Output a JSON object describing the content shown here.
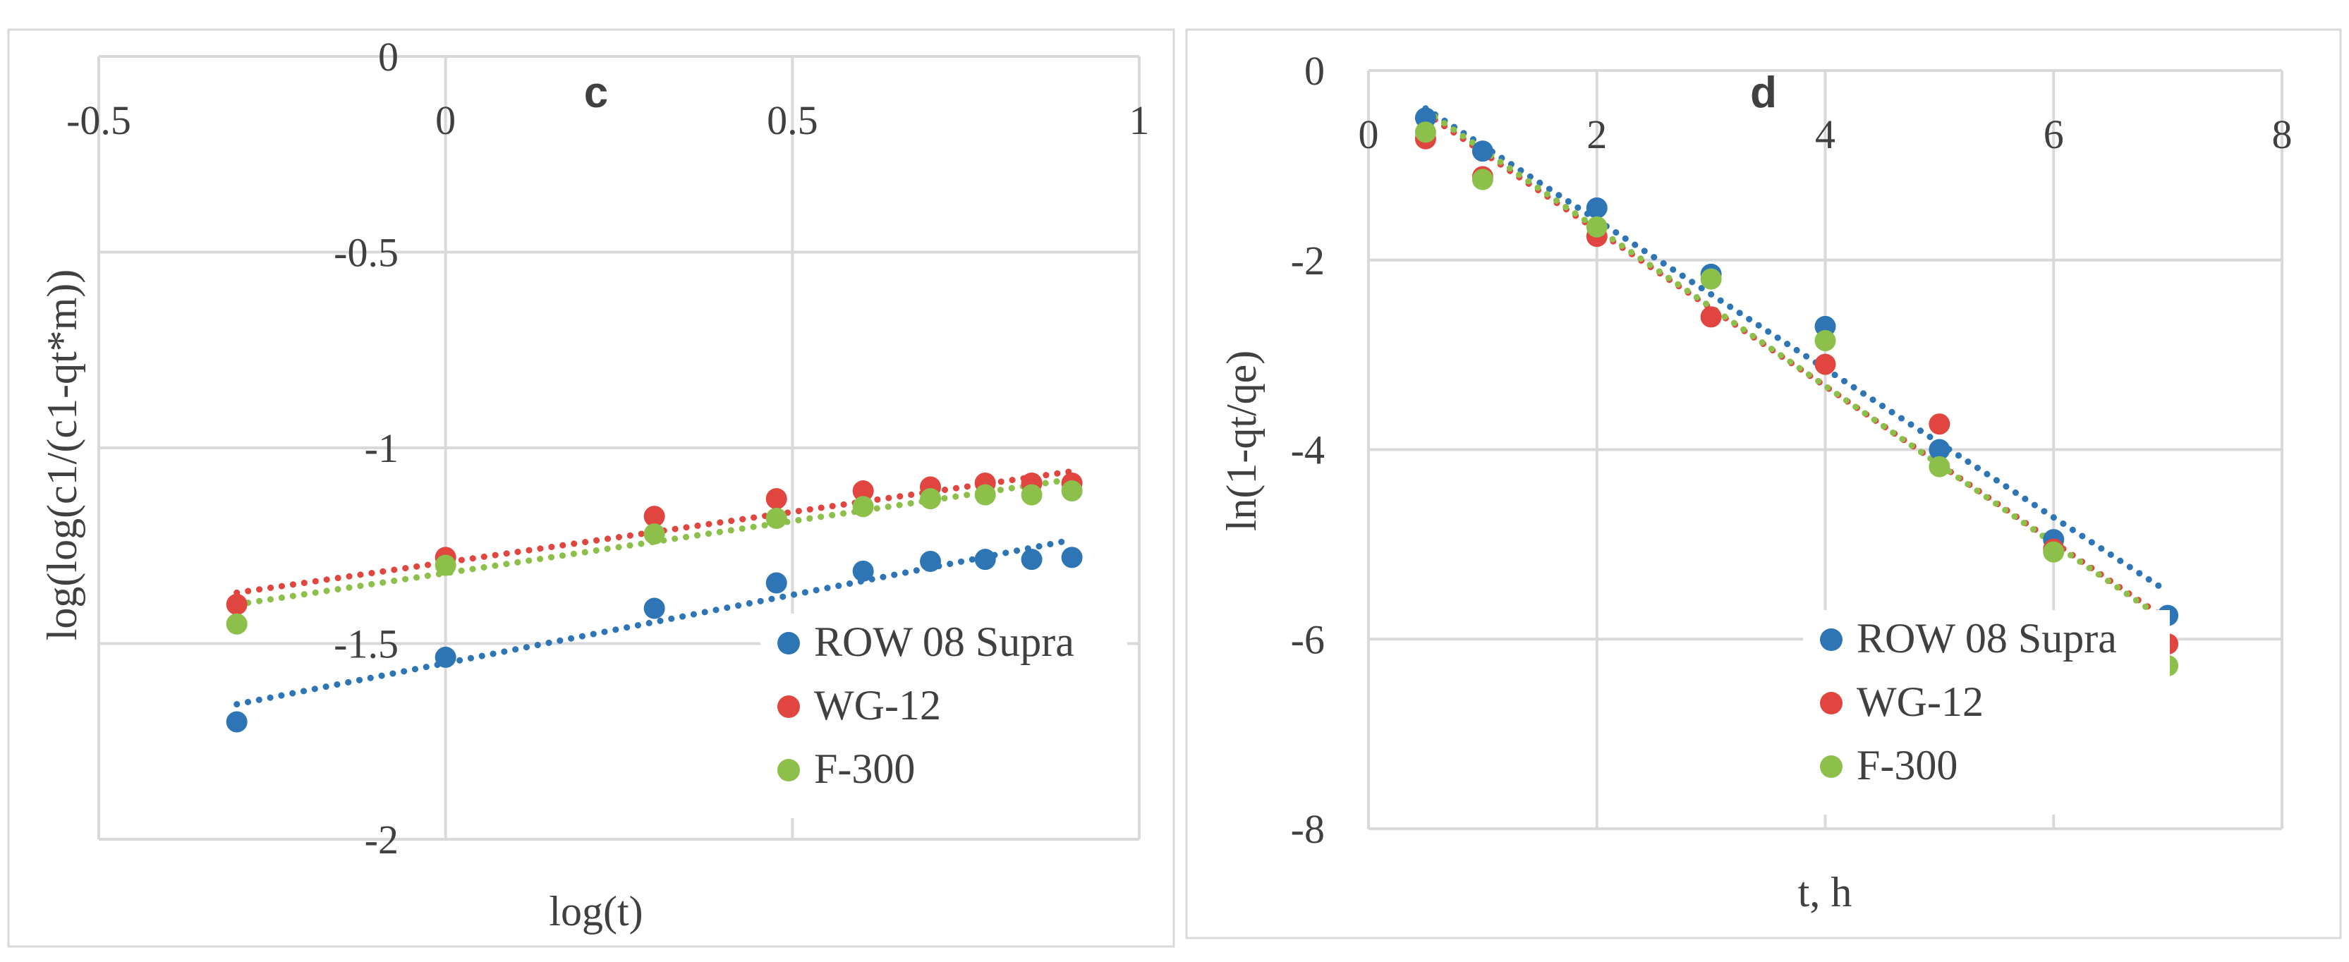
{
  "chart_data": [
    {
      "type": "scatter",
      "title": "c",
      "xlabel": "log(t)",
      "ylabel": "log(log(c1/(c1-qt*m))",
      "xlim": [
        -0.5,
        1
      ],
      "ylim": [
        -2,
        0
      ],
      "x_ticks": [
        -0.5,
        0,
        0.5,
        1
      ],
      "x_tick_labels": [
        "-0.5",
        "0",
        "0.5",
        "1"
      ],
      "y_ticks": [
        -2,
        -1.5,
        -1,
        -0.5,
        0
      ],
      "y_tick_labels": [
        "-2",
        "-1.5",
        "-1",
        "-0.5",
        "0"
      ],
      "grid": true,
      "legend_position": "bottom-right",
      "series": [
        {
          "name": "ROW 08 Supra",
          "color": "#2E75B6",
          "x": [
            -0.301,
            0,
            0.301,
            0.477,
            0.602,
            0.699,
            0.778,
            0.845,
            0.903
          ],
          "y": [
            -1.7,
            -1.535,
            -1.41,
            -1.345,
            -1.315,
            -1.29,
            -1.285,
            -1.285,
            -1.28
          ],
          "trendline": {
            "x": [
              -0.301,
              0.903
            ],
            "y": [
              -1.655,
              -1.235
            ]
          }
        },
        {
          "name": "WG-12",
          "color": "#E0463F",
          "x": [
            -0.301,
            0,
            0.301,
            0.477,
            0.602,
            0.699,
            0.778,
            0.845,
            0.903
          ],
          "y": [
            -1.4,
            -1.28,
            -1.175,
            -1.13,
            -1.11,
            -1.1,
            -1.09,
            -1.09,
            -1.09
          ],
          "trendline": {
            "x": [
              -0.301,
              0.903
            ],
            "y": [
              -1.37,
              -1.06
            ]
          }
        },
        {
          "name": "F-300",
          "color": "#8CC04B",
          "x": [
            -0.301,
            0,
            0.301,
            0.477,
            0.602,
            0.699,
            0.778,
            0.845,
            0.903
          ],
          "y": [
            -1.45,
            -1.3,
            -1.22,
            -1.18,
            -1.15,
            -1.13,
            -1.12,
            -1.12,
            -1.11
          ],
          "trendline": {
            "x": [
              -0.301,
              0.903
            ],
            "y": [
              -1.4,
              -1.08
            ]
          }
        }
      ]
    },
    {
      "type": "scatter",
      "title": "d",
      "xlabel": "t, h",
      "ylabel": "ln(1-qt/qe)",
      "xlim": [
        0,
        8
      ],
      "ylim": [
        -8,
        0
      ],
      "x_ticks": [
        0,
        2,
        4,
        6,
        8
      ],
      "x_tick_labels": [
        "0",
        "2",
        "4",
        "6",
        "8"
      ],
      "y_ticks": [
        -8,
        -6,
        -4,
        -2,
        0
      ],
      "y_tick_labels": [
        "-8",
        "-6",
        "-4",
        "-2",
        "0"
      ],
      "grid": true,
      "legend_position": "bottom-right",
      "series": [
        {
          "name": "ROW 08 Supra",
          "color": "#2E75B6",
          "x": [
            0.5,
            1,
            2,
            3,
            4,
            5,
            6,
            7
          ],
          "y": [
            -0.5,
            -0.85,
            -1.45,
            -2.15,
            -2.7,
            -4.0,
            -4.95,
            -5.75
          ],
          "trendline": {
            "x": [
              0.5,
              7
            ],
            "y": [
              -0.4,
              -5.5
            ]
          }
        },
        {
          "name": "WG-12",
          "color": "#E0463F",
          "x": [
            0.5,
            1,
            2,
            3,
            4,
            5,
            6,
            7
          ],
          "y": [
            -0.72,
            -1.12,
            -1.75,
            -2.6,
            -3.1,
            -3.73,
            -5.05,
            -6.05
          ],
          "trendline": {
            "x": [
              0.5,
              7
            ],
            "y": [
              -0.45,
              -5.8
            ]
          }
        },
        {
          "name": "F-300",
          "color": "#8CC04B",
          "x": [
            0.5,
            1,
            2,
            3,
            4,
            5,
            6,
            7
          ],
          "y": [
            -0.65,
            -1.15,
            -1.65,
            -2.2,
            -2.85,
            -4.18,
            -5.08,
            -6.28
          ],
          "trendline": {
            "x": [
              0.5,
              7
            ],
            "y": [
              -0.42,
              -5.82
            ]
          }
        }
      ]
    }
  ]
}
